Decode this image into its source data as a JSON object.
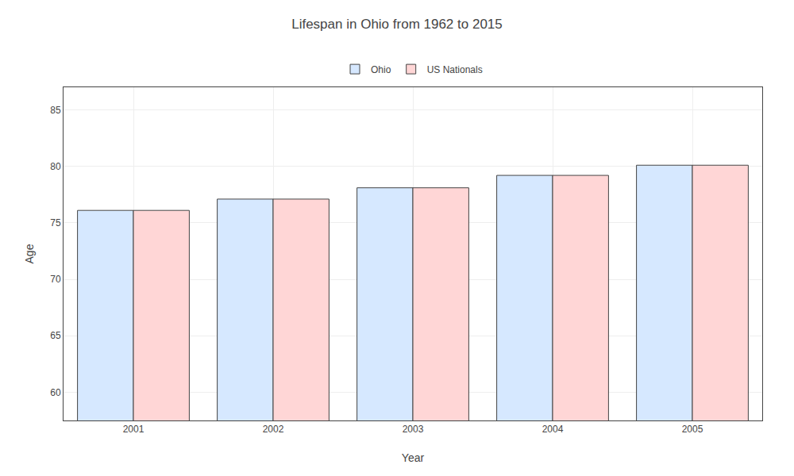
{
  "chart_data": {
    "type": "bar",
    "title": "Lifespan in Ohio from 1962 to 2015",
    "x_label": "Year",
    "y_label": "Age",
    "categories": [
      "2001",
      "2002",
      "2003",
      "2004",
      "2005"
    ],
    "series": [
      {
        "name": "Ohio",
        "color": "#d6e8ff",
        "values": [
          76.1,
          77.1,
          78.1,
          79.2,
          80.1
        ]
      },
      {
        "name": "US Nationals",
        "color": "#ffd6d6",
        "values": [
          76.1,
          77.1,
          78.1,
          79.2,
          80.1
        ]
      }
    ],
    "ylim": [
      57.5,
      87
    ],
    "yticks": [
      60,
      65,
      70,
      75,
      80,
      85
    ],
    "grid": true,
    "legend": "top"
  }
}
